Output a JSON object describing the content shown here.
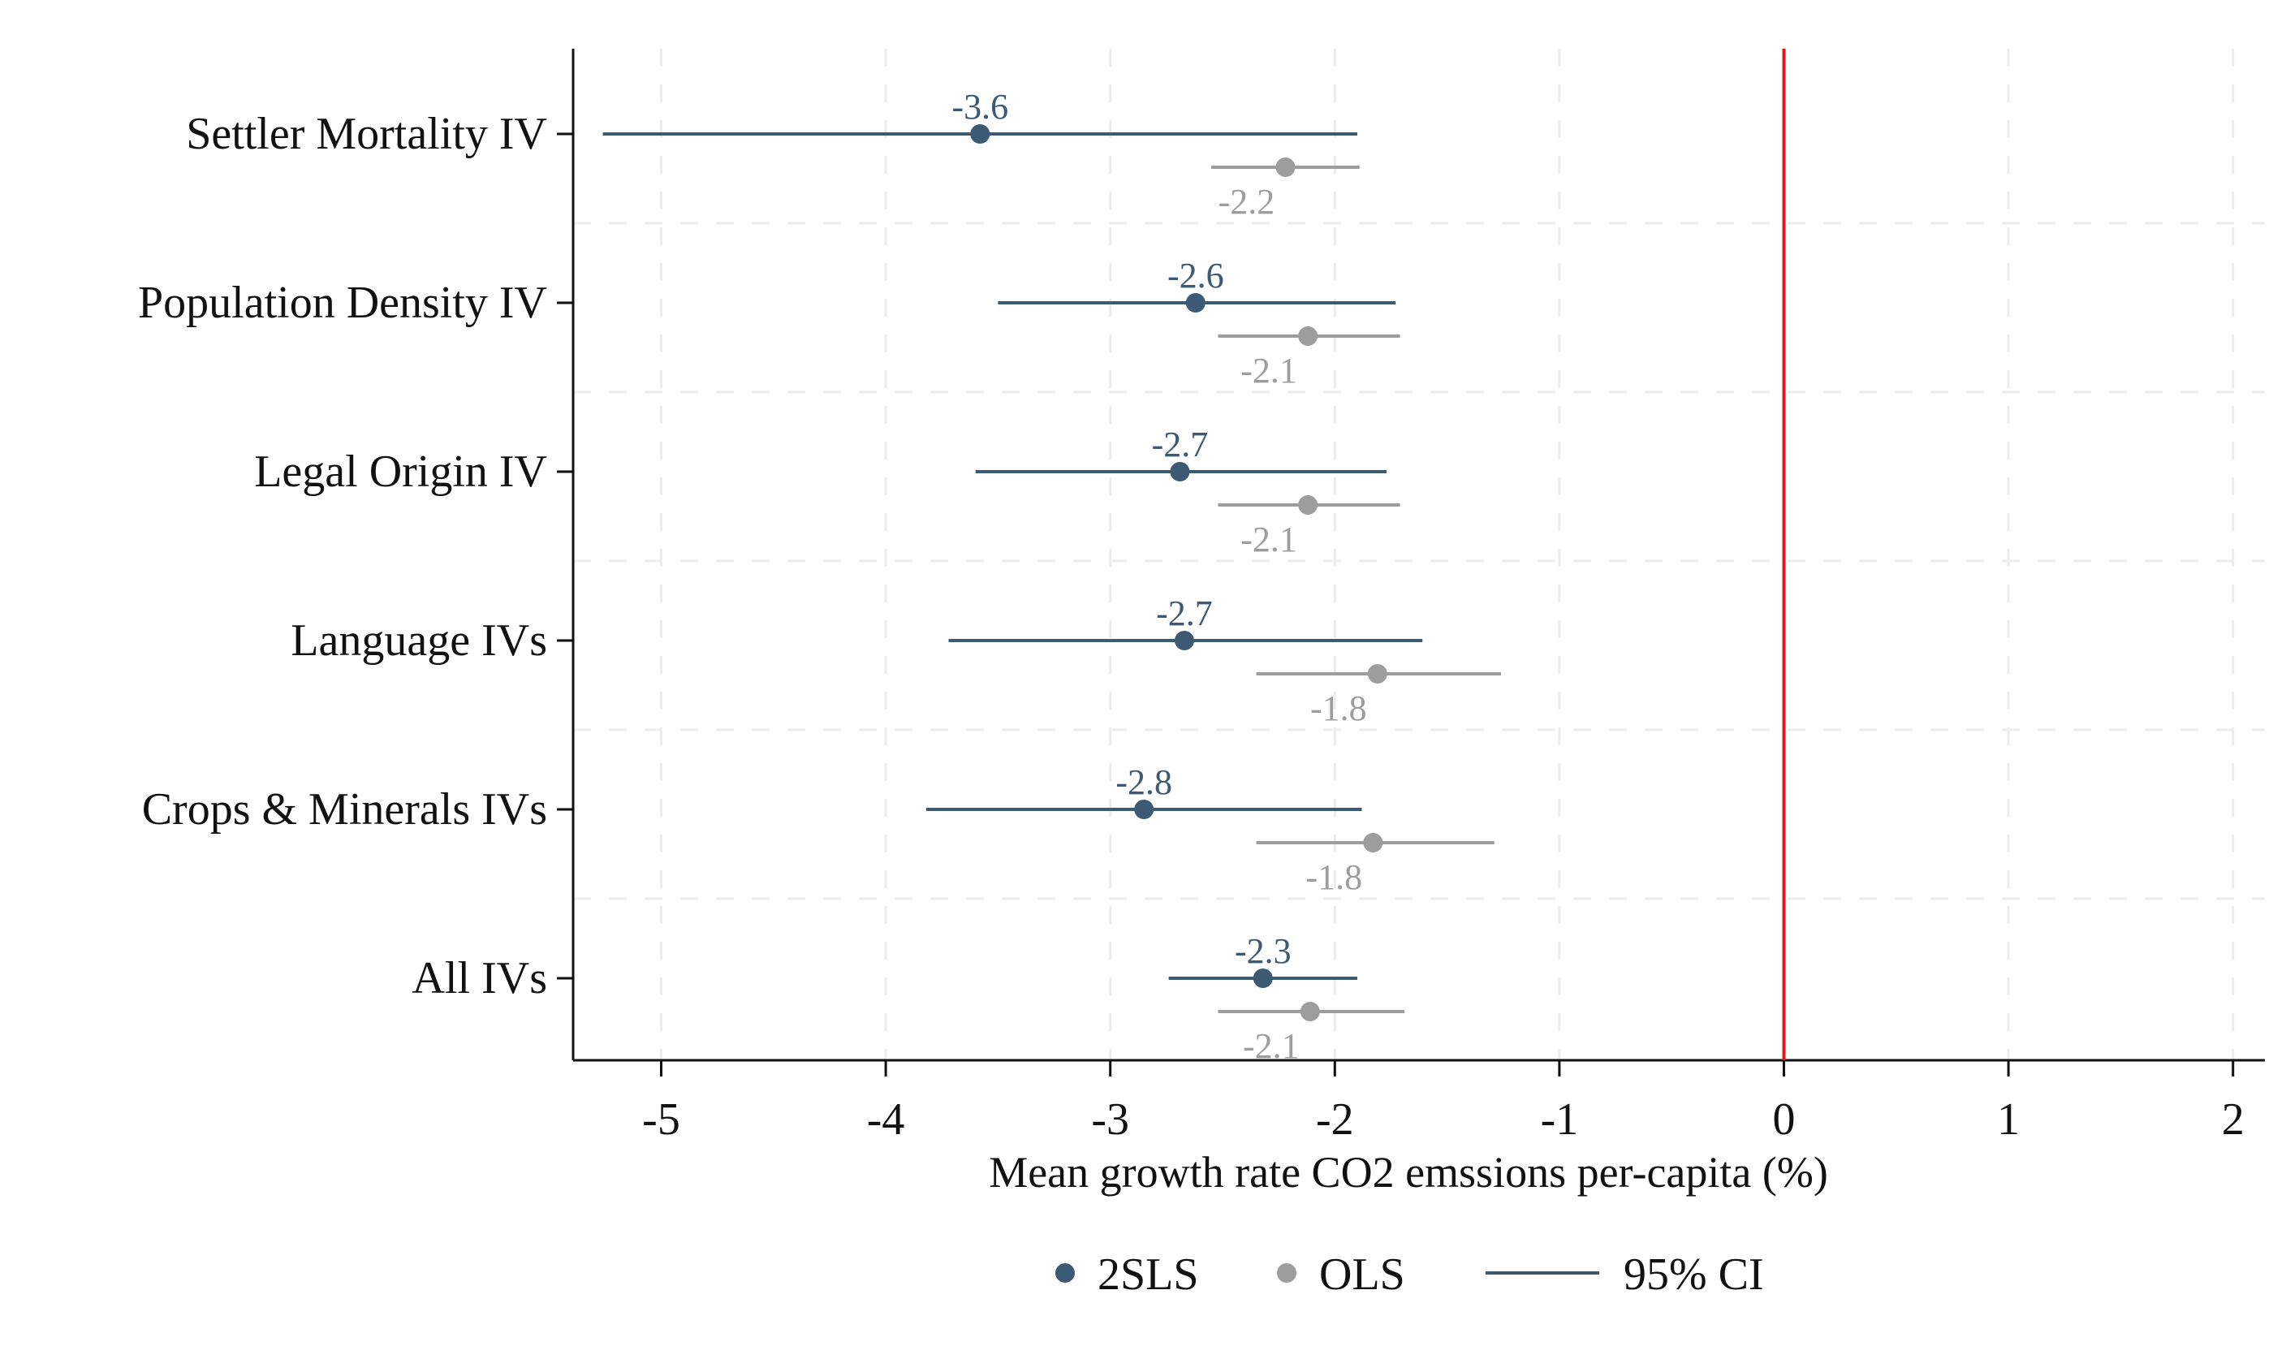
{
  "chart_data": {
    "type": "scatter",
    "subtype": "coefficient plot",
    "xlabel": "Mean growth rate CO2 emssions per-capita (%)",
    "xlim": [
      -5.4,
      2.15
    ],
    "xticks": [
      -5,
      -4,
      -3,
      -2,
      -1,
      0,
      1,
      2
    ],
    "xtick_labels": [
      "-5",
      "-4",
      "-3",
      "-2",
      "-1",
      "0",
      "1",
      "2"
    ],
    "reference_line": {
      "x": 0,
      "color": "#e8141b"
    },
    "categories": [
      "Settler Mortality IV",
      "Population Density IV",
      "Legal Origin IV",
      "Language IVs",
      "Crops & Minerals IVs",
      "All IVs"
    ],
    "series": [
      {
        "name": "2SLS",
        "color": "#3c5a74",
        "estimates": [
          -3.58,
          -2.62,
          -2.69,
          -2.67,
          -2.85,
          -2.32
        ],
        "ci_low": [
          -5.26,
          -3.5,
          -3.6,
          -3.72,
          -3.82,
          -2.74
        ],
        "ci_high": [
          -1.9,
          -1.73,
          -1.77,
          -1.61,
          -1.88,
          -1.9
        ],
        "value_labels": [
          "-3.6",
          "-2.6",
          "-2.7",
          "-2.7",
          "-2.8",
          "-2.3"
        ]
      },
      {
        "name": "OLS",
        "color": "#9d9d9d",
        "estimates": [
          -2.22,
          -2.12,
          -2.12,
          -1.81,
          -1.83,
          -2.11
        ],
        "ci_low": [
          -2.55,
          -2.52,
          -2.52,
          -2.35,
          -2.35,
          -2.52
        ],
        "ci_high": [
          -1.89,
          -1.71,
          -1.71,
          -1.26,
          -1.29,
          -1.69
        ],
        "value_labels": [
          "-2.2",
          "-2.1",
          "-2.1",
          "-1.8",
          "-1.8",
          "-2.1"
        ]
      }
    ],
    "legend": {
      "position": "bottom",
      "items": [
        {
          "label": "2SLS",
          "kind": "marker",
          "color": "#3c5a74"
        },
        {
          "label": "OLS",
          "kind": "marker",
          "color": "#9d9d9d"
        },
        {
          "label": "95% CI",
          "kind": "line",
          "color": "#3c5a74"
        }
      ]
    },
    "grid": true
  }
}
